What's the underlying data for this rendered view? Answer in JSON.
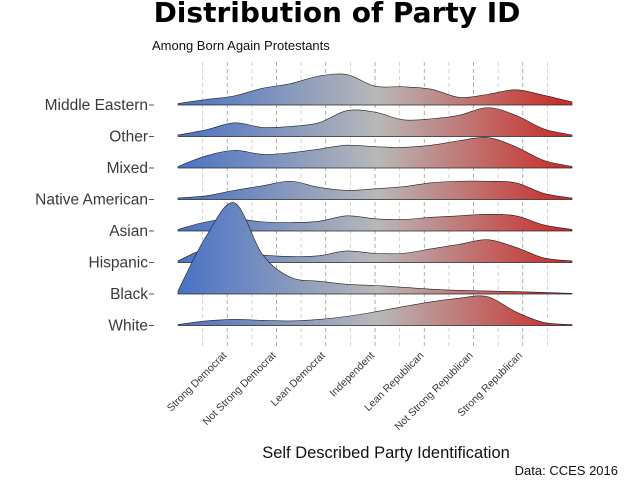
{
  "chart_data": {
    "type": "ridgeline",
    "title": "Distribution of Party ID",
    "subtitle": "Among Born Again Protestants",
    "xlabel": "Self Described Party Identification",
    "ylabel": "",
    "caption": "Data: CCES 2016",
    "categories": [
      "Strong Democrat",
      "Not Strong Democrat",
      "Lean Democrat",
      "Independent",
      "Lean Republican",
      "Not Strong Republican",
      "Strong Republican"
    ],
    "xlim": [
      0,
      8
    ],
    "grid": "vertical-dashed",
    "color_gradient": [
      "#4a72c4",
      "#b8b8b8",
      "#c8302c"
    ],
    "density_scale": 0.8,
    "series": [
      {
        "name": "Middle Eastern",
        "density": [
          0.05,
          0.18,
          0.3,
          0.55,
          0.7,
          0.95,
          1.0,
          0.62,
          0.6,
          0.52,
          0.25,
          0.35,
          0.5,
          0.32,
          0.1
        ]
      },
      {
        "name": "Other",
        "density": [
          0.05,
          0.22,
          0.45,
          0.3,
          0.33,
          0.45,
          0.85,
          0.8,
          0.55,
          0.58,
          0.7,
          0.95,
          0.7,
          0.25,
          0.05
        ]
      },
      {
        "name": "Mixed",
        "density": [
          0.05,
          0.4,
          0.58,
          0.45,
          0.5,
          0.62,
          0.75,
          0.7,
          0.68,
          0.75,
          0.9,
          1.0,
          0.7,
          0.25,
          0.05
        ]
      },
      {
        "name": "Native American",
        "density": [
          0.05,
          0.12,
          0.3,
          0.45,
          0.6,
          0.4,
          0.3,
          0.35,
          0.42,
          0.55,
          0.6,
          0.6,
          0.55,
          0.2,
          0.05
        ]
      },
      {
        "name": "Asian",
        "density": [
          0.05,
          0.3,
          0.4,
          0.3,
          0.28,
          0.32,
          0.5,
          0.4,
          0.38,
          0.45,
          0.5,
          0.55,
          0.5,
          0.2,
          0.05
        ]
      },
      {
        "name": "Hispanic",
        "density": [
          0.05,
          0.45,
          0.4,
          0.25,
          0.2,
          0.22,
          0.38,
          0.3,
          0.3,
          0.45,
          0.6,
          0.75,
          0.5,
          0.15,
          0.05
        ]
      },
      {
        "name": "Black",
        "density": [
          0.1,
          1.9,
          3.0,
          1.3,
          0.55,
          0.42,
          0.32,
          0.28,
          0.22,
          0.16,
          0.12,
          0.1,
          0.08,
          0.05,
          0.02
        ]
      },
      {
        "name": "White",
        "density": [
          0.03,
          0.15,
          0.2,
          0.17,
          0.15,
          0.2,
          0.3,
          0.45,
          0.62,
          0.78,
          0.9,
          0.95,
          0.45,
          0.1,
          0.03
        ]
      }
    ]
  }
}
